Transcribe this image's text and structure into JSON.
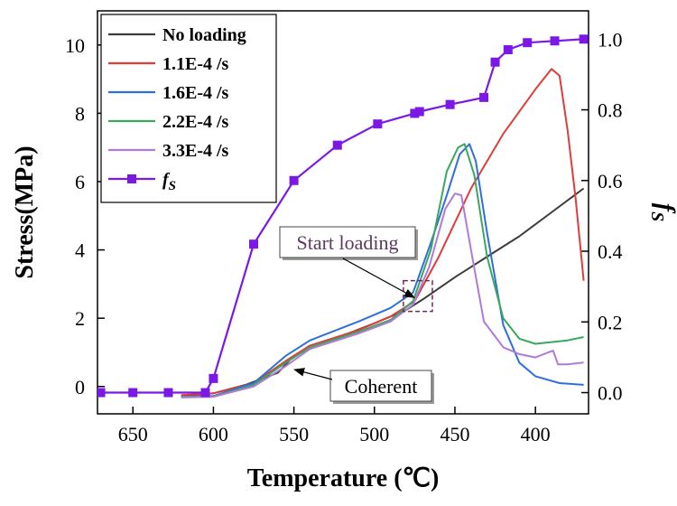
{
  "chart_data": {
    "type": "line",
    "xlabel": "Temperature (℃)",
    "ylabel": "Stress(MPa)",
    "y2label": "f",
    "y2label_sub": "S",
    "xlim": [
      672,
      367
    ],
    "ylim": [
      -0.8,
      11.0
    ],
    "y2lim": [
      -0.06,
      1.08
    ],
    "x_ticks": [
      650,
      600,
      550,
      500,
      450,
      400
    ],
    "y_ticks": [
      0,
      2,
      4,
      6,
      8,
      10
    ],
    "y2_ticks": [
      "0.0",
      "0.2",
      "0.4",
      "0.6",
      "0.8",
      "1.0"
    ],
    "legend_position": "top-left",
    "series": [
      {
        "name": "No loading",
        "color": "#3c3c3c",
        "axis": "left",
        "points": [
          [
            620,
            -0.28
          ],
          [
            600,
            -0.2
          ],
          [
            580,
            0.05
          ],
          [
            560,
            0.4
          ],
          [
            550,
            0.9
          ],
          [
            530,
            1.3
          ],
          [
            500,
            1.85
          ],
          [
            480,
            2.25
          ],
          [
            470,
            2.55
          ],
          [
            450,
            3.2
          ],
          [
            430,
            3.8
          ],
          [
            410,
            4.4
          ],
          [
            390,
            5.1
          ],
          [
            370,
            5.8
          ]
        ]
      },
      {
        "name": "1.1E-4 /s",
        "color": "#e03c3c",
        "axis": "left",
        "points": [
          [
            620,
            -0.25
          ],
          [
            600,
            -0.2
          ],
          [
            575,
            0.1
          ],
          [
            555,
            0.75
          ],
          [
            540,
            1.2
          ],
          [
            510,
            1.65
          ],
          [
            490,
            2.05
          ],
          [
            475,
            2.5
          ],
          [
            460,
            3.8
          ],
          [
            440,
            5.8
          ],
          [
            420,
            7.4
          ],
          [
            400,
            8.7
          ],
          [
            390,
            9.3
          ],
          [
            385,
            9.1
          ],
          [
            380,
            7.5
          ],
          [
            375,
            5.5
          ],
          [
            370,
            3.1
          ]
        ]
      },
      {
        "name": "1.6E-4 /s",
        "color": "#2f6fdc",
        "axis": "left",
        "points": [
          [
            620,
            -0.3
          ],
          [
            600,
            -0.28
          ],
          [
            575,
            0.1
          ],
          [
            555,
            0.9
          ],
          [
            540,
            1.35
          ],
          [
            510,
            1.9
          ],
          [
            490,
            2.3
          ],
          [
            476,
            2.75
          ],
          [
            465,
            4.2
          ],
          [
            455,
            5.6
          ],
          [
            447,
            6.8
          ],
          [
            441,
            7.1
          ],
          [
            437,
            6.6
          ],
          [
            430,
            4.5
          ],
          [
            420,
            1.8
          ],
          [
            410,
            0.7
          ],
          [
            400,
            0.3
          ],
          [
            385,
            0.1
          ],
          [
            370,
            0.05
          ]
        ]
      },
      {
        "name": "2.2E-4 /s",
        "color": "#3aa85c",
        "axis": "left",
        "points": [
          [
            620,
            -0.3
          ],
          [
            600,
            -0.3
          ],
          [
            575,
            0.05
          ],
          [
            555,
            0.7
          ],
          [
            540,
            1.15
          ],
          [
            510,
            1.6
          ],
          [
            490,
            1.95
          ],
          [
            476,
            2.5
          ],
          [
            465,
            4.0
          ],
          [
            455,
            6.3
          ],
          [
            448,
            7.0
          ],
          [
            444,
            7.1
          ],
          [
            438,
            6.2
          ],
          [
            430,
            3.8
          ],
          [
            420,
            2.0
          ],
          [
            410,
            1.4
          ],
          [
            400,
            1.25
          ],
          [
            390,
            1.3
          ],
          [
            380,
            1.35
          ],
          [
            370,
            1.45
          ]
        ]
      },
      {
        "name": "3.3E-4 /s",
        "color": "#b07ad8",
        "axis": "left",
        "points": [
          [
            620,
            -0.32
          ],
          [
            600,
            -0.3
          ],
          [
            575,
            0.0
          ],
          [
            555,
            0.6
          ],
          [
            540,
            1.1
          ],
          [
            510,
            1.55
          ],
          [
            490,
            1.9
          ],
          [
            476,
            2.4
          ],
          [
            466,
            3.5
          ],
          [
            456,
            5.2
          ],
          [
            450,
            5.65
          ],
          [
            446,
            5.6
          ],
          [
            440,
            4.0
          ],
          [
            432,
            1.9
          ],
          [
            420,
            1.15
          ],
          [
            410,
            0.95
          ],
          [
            400,
            0.85
          ],
          [
            392,
            1.0
          ],
          [
            389,
            1.05
          ],
          [
            386,
            0.65
          ],
          [
            380,
            0.65
          ],
          [
            370,
            0.7
          ]
        ]
      },
      {
        "name": "f",
        "name_sub": "S",
        "color": "#7b18e6",
        "axis": "right",
        "marker": "square",
        "points": [
          [
            670,
            0.0
          ],
          [
            650,
            0.0
          ],
          [
            628,
            0.0
          ],
          [
            605,
            0.0
          ],
          [
            600,
            0.04
          ],
          [
            575,
            0.42
          ],
          [
            550,
            0.6
          ],
          [
            523,
            0.7
          ],
          [
            498,
            0.76
          ],
          [
            475,
            0.79
          ],
          [
            472,
            0.795
          ],
          [
            453,
            0.815
          ],
          [
            432,
            0.835
          ],
          [
            425,
            0.935
          ],
          [
            417,
            0.97
          ],
          [
            405,
            0.99
          ],
          [
            388,
            0.995
          ],
          [
            370,
            1.0
          ]
        ]
      }
    ],
    "annotations": [
      {
        "text": "Start loading",
        "color": "#5a3a60",
        "target": [
          473,
          2.5
        ]
      },
      {
        "text": "Coherent",
        "color": "#000000",
        "target": [
          553,
          0.6
        ]
      }
    ]
  }
}
